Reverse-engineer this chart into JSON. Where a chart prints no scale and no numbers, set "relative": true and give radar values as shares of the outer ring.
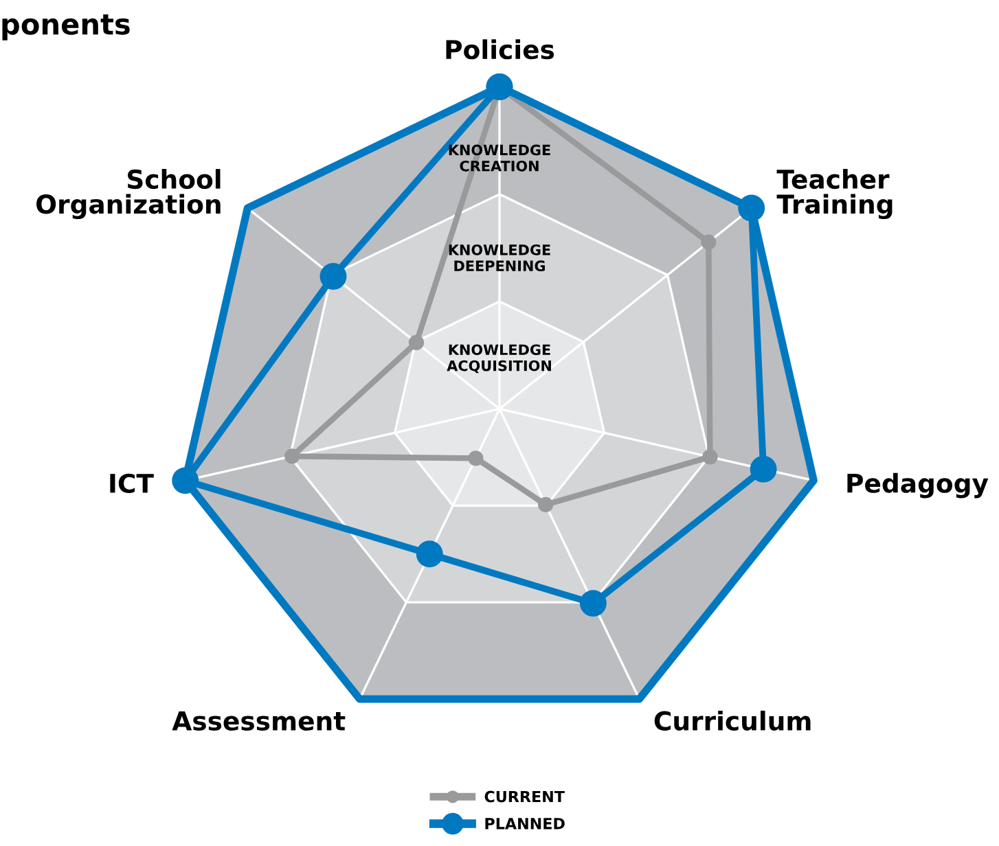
{
  "chart_data": {
    "type": "radar",
    "title": "ponents",
    "relative": true,
    "categories": [
      "Policies",
      "Teacher\nTraining",
      "Pedagogy",
      "Curriculum",
      "Assessment",
      "ICT",
      "School\nOrganization"
    ],
    "series": [
      {
        "name": "CURRENT",
        "color": "#999a9c",
        "values": [
          1.0,
          0.83,
          0.67,
          0.33,
          0.17,
          0.66,
          0.33
        ]
      },
      {
        "name": "PLANNED",
        "color": "#0079c1",
        "values": [
          1.0,
          1.0,
          0.84,
          0.67,
          0.5,
          1.0,
          0.66
        ]
      }
    ],
    "annotations": [
      "KNOWLEDGE\nACQUISITION",
      "KNOWLEDGE\nDEEPENING",
      "KNOWLEDGE\nCREATION"
    ],
    "marker": "circle",
    "line_style": "solid",
    "grid": true,
    "legend": "bottom"
  }
}
